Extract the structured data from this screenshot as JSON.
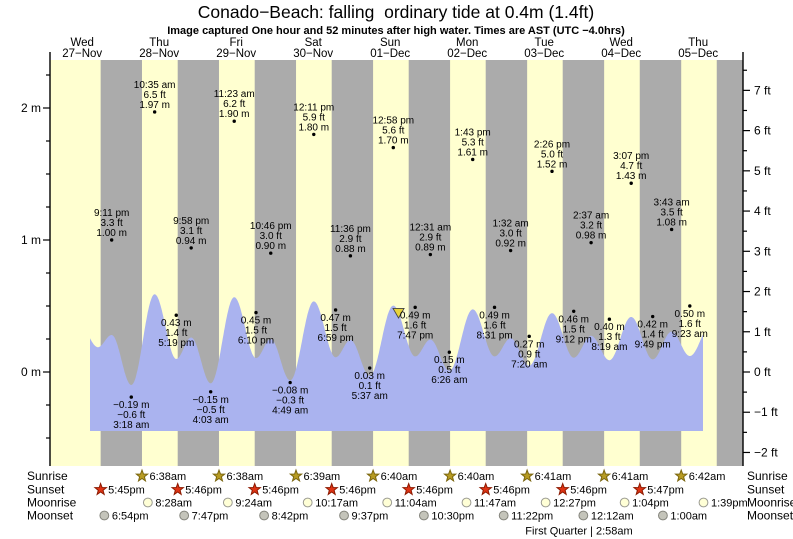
{
  "title": "Conado−Beach: falling  ordinary tide at 0.4m (1.4ft)",
  "subtitle": "Image captured One hour and 52 minutes after high water. Times are AST (UTC −4.0hrs)",
  "colors": {
    "day_band": "#ffffd0",
    "night_band": "#ababab",
    "water": "#aab3ef",
    "date_red": "#e8392a",
    "marker_yellow": "#e8d33c",
    "sunrise_star": "#b79b22",
    "sunset_star": "#df3314",
    "moonrise_circle": "#ffffd6",
    "moonset_circle": "#c4c4ba",
    "text": "#000000"
  },
  "chart_data": {
    "type": "area",
    "title": "Conado−Beach: falling  ordinary tide at 0.4m (1.4ft)",
    "subtitle": "Image captured One hour and 52 minutes after high water. Times are AST (UTC −4.0hrs)",
    "days": [
      {
        "name": "Wed",
        "date": "27−Nov"
      },
      {
        "name": "Thu",
        "date": "28−Nov"
      },
      {
        "name": "Fri",
        "date": "29−Nov"
      },
      {
        "name": "Sat",
        "date": "30−Nov"
      },
      {
        "name": "Sun",
        "date": "01−Dec"
      },
      {
        "name": "Mon",
        "date": "02−Dec"
      },
      {
        "name": "Tue",
        "date": "03−Dec"
      },
      {
        "name": "Wed",
        "date": "04−Dec"
      },
      {
        "name": "Thu",
        "date": "05−Dec"
      }
    ],
    "y_axis_left": {
      "unit": "m",
      "labels": [
        "0 m",
        "1 m",
        "2 m"
      ],
      "values": [
        0,
        1,
        2
      ],
      "minor_step_m": 0.25,
      "min_m": -0.5,
      "max_m": 2.25
    },
    "y_axis_right": {
      "unit": "ft",
      "labels": [
        "−2 ft",
        "−1 ft",
        "0 ft",
        "1 ft",
        "2 ft",
        "3 ft",
        "4 ft",
        "5 ft",
        "6 ft",
        "7 ft"
      ],
      "values": [
        -2,
        -1,
        0,
        1,
        2,
        3,
        4,
        5,
        6,
        7
      ],
      "minor_step_ft": 0.5,
      "min_ft": -2,
      "max_ft": 7.5
    },
    "tide_events": [
      {
        "day": 0,
        "time": "9:11 pm",
        "hour": 21.183,
        "height_m": 1.0,
        "m_label": "1.00 m",
        "ft_label": "3.3 ft",
        "type": "high"
      },
      {
        "day": 1,
        "time": "3:18 am",
        "hour": 3.3,
        "height_m": -0.19,
        "m_label": "−0.19 m",
        "ft_label": "−0.6 ft",
        "type": "low"
      },
      {
        "day": 1,
        "time": "10:35 am",
        "hour": 10.583,
        "height_m": 1.97,
        "m_label": "1.97 m",
        "ft_label": "6.5 ft",
        "type": "high"
      },
      {
        "day": 1,
        "time": "5:19 pm",
        "hour": 17.317,
        "height_m": 0.43,
        "m_label": "0.43 m",
        "ft_label": "1.4 ft",
        "type": "low"
      },
      {
        "day": 1,
        "time": "9:58 pm",
        "hour": 21.967,
        "height_m": 0.94,
        "m_label": "0.94 m",
        "ft_label": "3.1 ft",
        "type": "high"
      },
      {
        "day": 2,
        "time": "4:03 am",
        "hour": 4.05,
        "height_m": -0.15,
        "m_label": "−0.15 m",
        "ft_label": "−0.5 ft",
        "type": "low"
      },
      {
        "day": 2,
        "time": "11:23 am",
        "hour": 11.383,
        "height_m": 1.9,
        "m_label": "1.90 m",
        "ft_label": "6.2 ft",
        "type": "high"
      },
      {
        "day": 2,
        "time": "6:10 pm",
        "hour": 18.167,
        "height_m": 0.45,
        "m_label": "0.45 m",
        "ft_label": "1.5 ft",
        "type": "low"
      },
      {
        "day": 2,
        "time": "10:46 pm",
        "hour": 22.767,
        "height_m": 0.9,
        "m_label": "0.90 m",
        "ft_label": "3.0 ft",
        "type": "high"
      },
      {
        "day": 3,
        "time": "4:49 am",
        "hour": 4.817,
        "height_m": -0.08,
        "m_label": "−0.08 m",
        "ft_label": "−0.3 ft",
        "type": "low"
      },
      {
        "day": 3,
        "time": "12:11 pm",
        "hour": 12.183,
        "height_m": 1.8,
        "m_label": "1.80 m",
        "ft_label": "5.9 ft",
        "type": "high"
      },
      {
        "day": 3,
        "time": "6:59 pm",
        "hour": 18.983,
        "height_m": 0.47,
        "m_label": "0.47 m",
        "ft_label": "1.5 ft",
        "type": "low"
      },
      {
        "day": 3,
        "time": "11:36 pm",
        "hour": 23.6,
        "height_m": 0.88,
        "m_label": "0.88 m",
        "ft_label": "2.9 ft",
        "type": "high"
      },
      {
        "day": 4,
        "time": "5:37 am",
        "hour": 5.617,
        "height_m": 0.03,
        "m_label": "0.03 m",
        "ft_label": "0.1 ft",
        "type": "low"
      },
      {
        "day": 4,
        "time": "12:58 pm",
        "hour": 12.967,
        "height_m": 1.7,
        "m_label": "1.70 m",
        "ft_label": "5.6 ft",
        "type": "high"
      },
      {
        "day": 4,
        "time": "7:47 pm",
        "hour": 19.783,
        "height_m": 0.49,
        "m_label": "0.49 m",
        "ft_label": "1.6 ft",
        "type": "low"
      },
      {
        "day": 5,
        "time": "12:31 am",
        "hour": 0.517,
        "height_m": 0.89,
        "m_label": "0.89 m",
        "ft_label": "2.9 ft",
        "type": "high"
      },
      {
        "day": 5,
        "time": "6:26 am",
        "hour": 6.433,
        "height_m": 0.15,
        "m_label": "0.15 m",
        "ft_label": "0.5 ft",
        "type": "low"
      },
      {
        "day": 5,
        "time": "1:43 pm",
        "hour": 13.717,
        "height_m": 1.61,
        "m_label": "1.61 m",
        "ft_label": "5.3 ft",
        "type": "high"
      },
      {
        "day": 5,
        "time": "8:31 pm",
        "hour": 20.517,
        "height_m": 0.49,
        "m_label": "0.49 m",
        "ft_label": "1.6 ft",
        "type": "low"
      },
      {
        "day": 6,
        "time": "1:32 am",
        "hour": 1.533,
        "height_m": 0.92,
        "m_label": "0.92 m",
        "ft_label": "3.0 ft",
        "type": "high"
      },
      {
        "day": 6,
        "time": "7:20 am",
        "hour": 7.333,
        "height_m": 0.27,
        "m_label": "0.27 m",
        "ft_label": "0.9 ft",
        "type": "low"
      },
      {
        "day": 6,
        "time": "2:26 pm",
        "hour": 14.433,
        "height_m": 1.52,
        "m_label": "1.52 m",
        "ft_label": "5.0 ft",
        "type": "high"
      },
      {
        "day": 6,
        "time": "9:12 pm",
        "hour": 21.2,
        "height_m": 0.46,
        "m_label": "0.46 m",
        "ft_label": "1.5 ft",
        "type": "low"
      },
      {
        "day": 7,
        "time": "2:37 am",
        "hour": 2.617,
        "height_m": 0.98,
        "m_label": "0.98 m",
        "ft_label": "3.2 ft",
        "type": "high"
      },
      {
        "day": 7,
        "time": "8:19 am",
        "hour": 8.317,
        "height_m": 0.4,
        "m_label": "0.40 m",
        "ft_label": "1.3 ft",
        "type": "low"
      },
      {
        "day": 7,
        "time": "3:07 pm",
        "hour": 15.117,
        "height_m": 1.43,
        "m_label": "1.43 m",
        "ft_label": "4.7 ft",
        "type": "high"
      },
      {
        "day": 7,
        "time": "9:49 pm",
        "hour": 21.817,
        "height_m": 0.42,
        "m_label": "0.42 m",
        "ft_label": "1.4 ft",
        "type": "low"
      },
      {
        "day": 8,
        "time": "3:43 am",
        "hour": 3.717,
        "height_m": 1.08,
        "m_label": "1.08 m",
        "ft_label": "3.5 ft",
        "type": "high"
      },
      {
        "day": 8,
        "time": "9:23 am",
        "hour": 9.383,
        "height_m": 0.5,
        "m_label": "0.50 m",
        "ft_label": "1.6 ft",
        "type": "low"
      }
    ],
    "current_marker": {
      "height_m": 0.4,
      "abs_hour": 110.6,
      "note": "yellow arrow on falling tide"
    },
    "sun_moon": {
      "rows": [
        {
          "id": "sunrise",
          "label": "Sunrise",
          "icon": "sunrise-star",
          "events": [
            {
              "day": 1,
              "time": "6:38am",
              "hour": 6.633
            },
            {
              "day": 2,
              "time": "6:38am",
              "hour": 6.633
            },
            {
              "day": 3,
              "time": "6:39am",
              "hour": 6.65
            },
            {
              "day": 4,
              "time": "6:40am",
              "hour": 6.667
            },
            {
              "day": 5,
              "time": "6:40am",
              "hour": 6.667
            },
            {
              "day": 6,
              "time": "6:41am",
              "hour": 6.683
            },
            {
              "day": 7,
              "time": "6:41am",
              "hour": 6.683
            },
            {
              "day": 8,
              "time": "6:42am",
              "hour": 6.7
            }
          ]
        },
        {
          "id": "sunset",
          "label": "Sunset",
          "icon": "sunset-star",
          "events": [
            {
              "day": 0,
              "time": "5:45pm",
              "hour": 17.75
            },
            {
              "day": 1,
              "time": "5:46pm",
              "hour": 17.767
            },
            {
              "day": 2,
              "time": "5:46pm",
              "hour": 17.767
            },
            {
              "day": 3,
              "time": "5:46pm",
              "hour": 17.767
            },
            {
              "day": 4,
              "time": "5:46pm",
              "hour": 17.767
            },
            {
              "day": 5,
              "time": "5:46pm",
              "hour": 17.767
            },
            {
              "day": 6,
              "time": "5:46pm",
              "hour": 17.767
            },
            {
              "day": 7,
              "time": "5:47pm",
              "hour": 17.783
            }
          ]
        },
        {
          "id": "moonrise",
          "label": "Moonrise",
          "icon": "moonrise-circle",
          "events": [
            {
              "day": 1,
              "time": "8:28am",
              "hour": 8.467
            },
            {
              "day": 2,
              "time": "9:24am",
              "hour": 9.4
            },
            {
              "day": 3,
              "time": "10:17am",
              "hour": 10.283
            },
            {
              "day": 4,
              "time": "11:04am",
              "hour": 11.067
            },
            {
              "day": 5,
              "time": "11:47am",
              "hour": 11.783
            },
            {
              "day": 6,
              "time": "12:27pm",
              "hour": 12.45
            },
            {
              "day": 7,
              "time": "1:04pm",
              "hour": 13.067
            },
            {
              "day": 8,
              "time": "1:39pm",
              "hour": 13.65
            }
          ]
        },
        {
          "id": "moonset",
          "label": "Moonset",
          "icon": "moonset-circle",
          "events": [
            {
              "day": 0,
              "time": "6:54pm",
              "hour": 18.9
            },
            {
              "day": 1,
              "time": "7:47pm",
              "hour": 19.783
            },
            {
              "day": 2,
              "time": "8:42pm",
              "hour": 20.7
            },
            {
              "day": 3,
              "time": "9:37pm",
              "hour": 21.617
            },
            {
              "day": 4,
              "time": "10:30pm",
              "hour": 22.5
            },
            {
              "day": 5,
              "time": "11:22pm",
              "hour": 23.367
            },
            {
              "day": 7,
              "time": "12:12am",
              "hour": 0.2
            },
            {
              "day": 8,
              "time": "1:00am",
              "hour": 1.0
            }
          ]
        }
      ],
      "moon_phase": "First Quarter | 2:58am"
    }
  }
}
